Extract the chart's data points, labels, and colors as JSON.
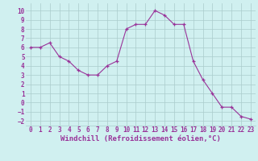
{
  "x": [
    0,
    1,
    2,
    3,
    4,
    5,
    6,
    7,
    8,
    9,
    10,
    11,
    12,
    13,
    14,
    15,
    16,
    17,
    18,
    19,
    20,
    21,
    22,
    23
  ],
  "y": [
    6.0,
    6.0,
    6.5,
    5.0,
    4.5,
    3.5,
    3.0,
    3.0,
    4.0,
    4.5,
    8.0,
    8.5,
    8.5,
    10.0,
    9.5,
    8.5,
    8.5,
    4.5,
    2.5,
    1.0,
    -0.5,
    -0.5,
    -1.5,
    -1.8
  ],
  "line_color": "#993399",
  "marker": "+",
  "marker_color": "#993399",
  "bg_color": "#d0f0f0",
  "grid_color": "#aacccc",
  "xlabel": "Windchill (Refroidissement éolien,°C)",
  "xlabel_color": "#993399",
  "xlabel_fontsize": 6.5,
  "tick_color": "#993399",
  "tick_fontsize": 5.5,
  "ylim": [
    -2.5,
    10.8
  ],
  "xlim": [
    -0.5,
    23.5
  ],
  "yticks": [
    -2,
    -1,
    0,
    1,
    2,
    3,
    4,
    5,
    6,
    7,
    8,
    9,
    10
  ],
  "xticks": [
    0,
    1,
    2,
    3,
    4,
    5,
    6,
    7,
    8,
    9,
    10,
    11,
    12,
    13,
    14,
    15,
    16,
    17,
    18,
    19,
    20,
    21,
    22,
    23
  ]
}
